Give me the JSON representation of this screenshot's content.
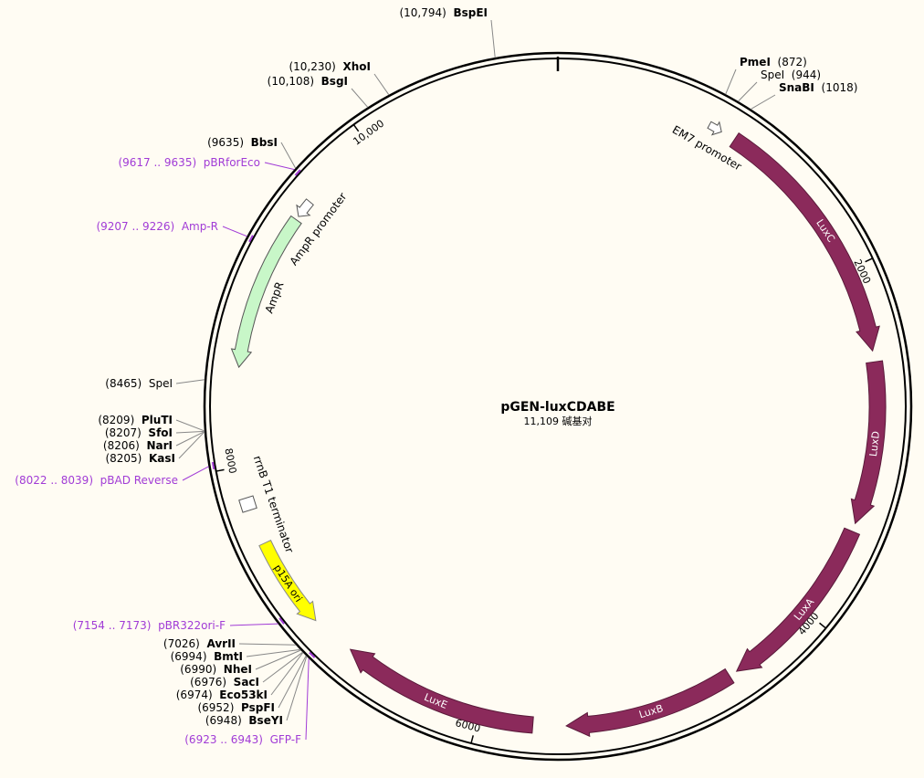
{
  "title": "pGEN-luxCDABE",
  "length": {
    "value": 11109,
    "label": "11,109 碱基对"
  },
  "ticks": [
    2000,
    4000,
    6000,
    8000,
    {
      "value": 10000,
      "label": "10,000"
    }
  ],
  "sites": [
    {
      "name": "BspEI",
      "position": "(10,794)",
      "bold": true
    },
    {
      "name": "XhoI",
      "position": "(10,230)",
      "bold": true
    },
    {
      "name": "BsgI",
      "position": "(10,108)",
      "bold": true
    },
    {
      "name": "PmeI",
      "position": "(872)",
      "bold": true
    },
    {
      "name": "SpeI",
      "position": "(944)",
      "bold": false
    },
    {
      "name": "SnaBI",
      "position": "(1018)",
      "bold": true
    },
    {
      "name": "BbsI",
      "position": "(9635)",
      "bold": true
    },
    {
      "name": "SpeI",
      "position": "(8465)",
      "bold": false
    },
    {
      "name": "PluTI",
      "position": "(8209)",
      "bold": true
    },
    {
      "name": "SfoI",
      "position": "(8207)",
      "bold": true
    },
    {
      "name": "NarI",
      "position": "(8206)",
      "bold": true
    },
    {
      "name": "KasI",
      "position": "(8205)",
      "bold": true
    },
    {
      "name": "AvrII",
      "position": "(7026)",
      "bold": true
    },
    {
      "name": "BmtI",
      "position": "(6994)",
      "bold": true
    },
    {
      "name": "NheI",
      "position": "(6990)",
      "bold": true
    },
    {
      "name": "SacI",
      "position": "(6976)",
      "bold": true
    },
    {
      "name": "Eco53kI",
      "position": "(6974)",
      "bold": true
    },
    {
      "name": "PspFI",
      "position": "(6952)",
      "bold": true
    },
    {
      "name": "BseYI",
      "position": "(6948)",
      "bold": true
    }
  ],
  "primers": [
    {
      "name": "pBRforEco",
      "range": "(9617 .. 9635)"
    },
    {
      "name": "Amp-R",
      "range": "(9207 .. 9226)"
    },
    {
      "name": "pBAD Reverse",
      "range": "(8022 .. 8039)"
    },
    {
      "name": "pBR322ori-F",
      "range": "(7154 .. 7173)"
    },
    {
      "name": "GFP-F",
      "range": "(6923 .. 6943)"
    }
  ],
  "features": [
    {
      "name": "EM7 promoter"
    },
    {
      "name": "LuxC"
    },
    {
      "name": "LuxD"
    },
    {
      "name": "LuxA"
    },
    {
      "name": "LuxB"
    },
    {
      "name": "LuxE"
    },
    {
      "name": "p15A ori"
    },
    {
      "name": "rrnB T1 terminator"
    },
    {
      "name": "AmpR"
    },
    {
      "name": "AmpR promoter"
    }
  ]
}
